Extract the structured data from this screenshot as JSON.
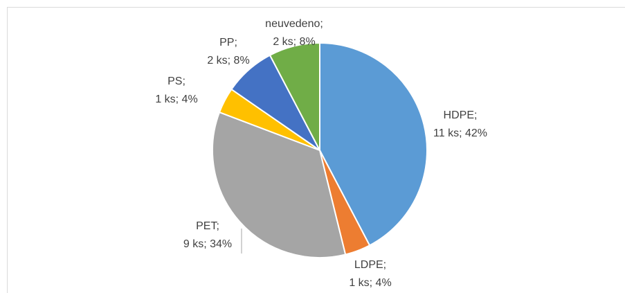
{
  "chart_data": {
    "type": "pie",
    "categories": [
      "HDPE;",
      "LDPE;",
      "PET;",
      "PS;",
      "PP;",
      "neuvedeno;"
    ],
    "values": [
      11,
      1,
      9,
      1,
      2,
      2
    ],
    "value_labels": [
      "11 ks; 42%",
      "1 ks; 4%",
      "9 ks; 34%",
      "1 ks; 4%",
      "2 ks; 8%",
      "2 ks; 8%"
    ],
    "colors": [
      "#5b9bd5",
      "#ed7d31",
      "#a5a5a5",
      "#ffc000",
      "#4472c4",
      "#70ad47"
    ]
  }
}
